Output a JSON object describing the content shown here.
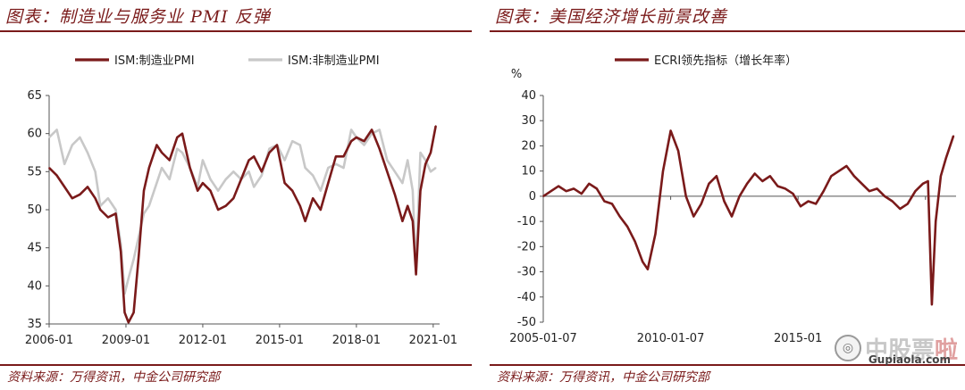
{
  "left_panel": {
    "title": "图表：制造业与服务业 PMI 反弹",
    "source": "资料来源：万得资讯，中金公司研究部"
  },
  "right_panel": {
    "title": "图表：美国经济增长前景改善",
    "source": "资料来源：万得资讯，中金公司研究部"
  },
  "watermark": {
    "text_a": "中",
    "text_b": "股票",
    "text_c": "啦",
    "url": "Gupiaola.com"
  },
  "chart_data": [
    {
      "type": "line",
      "title": "",
      "x_tick_labels": [
        "2006-01",
        "2009-01",
        "2012-01",
        "2015-01",
        "2018-01",
        "2021-01"
      ],
      "y_ticks": [
        35,
        40,
        45,
        50,
        55,
        60,
        65
      ],
      "xlim": [
        2006.0,
        2021.25
      ],
      "ylim": [
        35,
        65
      ],
      "legend_placement": "top",
      "series": [
        {
          "name": "ISM:制造业PMI",
          "color": "#7a1a1a",
          "x": [
            2006.0,
            2006.3,
            2006.6,
            2006.9,
            2007.2,
            2007.5,
            2007.8,
            2008.0,
            2008.3,
            2008.6,
            2008.8,
            2008.95,
            2009.1,
            2009.3,
            2009.5,
            2009.7,
            2009.9,
            2010.2,
            2010.4,
            2010.7,
            2011.0,
            2011.2,
            2011.5,
            2011.8,
            2012.0,
            2012.3,
            2012.6,
            2012.9,
            2013.2,
            2013.5,
            2013.8,
            2014.0,
            2014.3,
            2014.6,
            2014.9,
            2015.2,
            2015.5,
            2015.8,
            2016.0,
            2016.3,
            2016.6,
            2016.9,
            2017.2,
            2017.5,
            2017.8,
            2018.0,
            2018.3,
            2018.6,
            2018.9,
            2019.2,
            2019.5,
            2019.8,
            2020.0,
            2020.2,
            2020.33,
            2020.5,
            2020.7,
            2020.9,
            2021.1
          ],
          "values": [
            55.5,
            54.5,
            53.0,
            51.5,
            52.0,
            53.0,
            51.5,
            50.0,
            49.0,
            49.5,
            44.5,
            36.5,
            35.2,
            36.5,
            44.0,
            52.5,
            55.5,
            58.5,
            57.5,
            56.5,
            59.5,
            60.0,
            55.5,
            52.5,
            53.5,
            52.5,
            50.0,
            50.5,
            51.5,
            54.0,
            56.5,
            57.0,
            55.0,
            57.5,
            58.5,
            53.5,
            52.5,
            50.5,
            48.5,
            51.5,
            50.0,
            53.5,
            57.0,
            57.0,
            59.0,
            59.5,
            59.0,
            60.5,
            58.0,
            55.0,
            52.0,
            48.5,
            50.5,
            48.5,
            41.5,
            52.5,
            56.0,
            57.5,
            61.0
          ]
        },
        {
          "name": "ISM:非制造业PMI",
          "color": "#c8c8c8",
          "x": [
            2006.0,
            2006.3,
            2006.6,
            2006.9,
            2007.2,
            2007.5,
            2007.8,
            2008.0,
            2008.3,
            2008.6,
            2008.8,
            2008.95,
            2009.1,
            2009.3,
            2009.5,
            2009.7,
            2009.9,
            2010.2,
            2010.4,
            2010.7,
            2011.0,
            2011.2,
            2011.5,
            2011.8,
            2012.0,
            2012.3,
            2012.6,
            2012.9,
            2013.2,
            2013.5,
            2013.8,
            2014.0,
            2014.3,
            2014.6,
            2014.9,
            2015.2,
            2015.5,
            2015.8,
            2016.0,
            2016.3,
            2016.6,
            2016.9,
            2017.2,
            2017.5,
            2017.8,
            2018.0,
            2018.3,
            2018.6,
            2018.9,
            2019.2,
            2019.5,
            2019.8,
            2020.0,
            2020.2,
            2020.33,
            2020.5,
            2020.7,
            2020.9,
            2021.1
          ],
          "values": [
            59.5,
            60.5,
            56.0,
            58.5,
            59.5,
            57.5,
            55.0,
            50.5,
            51.5,
            50.0,
            45.5,
            39.0,
            41.0,
            43.5,
            46.5,
            49.5,
            50.5,
            53.5,
            55.5,
            54.0,
            58.0,
            57.5,
            55.5,
            53.0,
            56.5,
            54.0,
            52.5,
            54.0,
            55.0,
            54.0,
            55.0,
            53.0,
            54.5,
            58.0,
            58.5,
            56.5,
            59.0,
            58.5,
            55.5,
            54.5,
            52.5,
            55.5,
            56.0,
            55.5,
            60.5,
            59.5,
            58.5,
            60.0,
            60.5,
            56.5,
            55.0,
            53.5,
            56.5,
            52.5,
            41.8,
            57.5,
            56.5,
            55.0,
            55.5
          ]
        }
      ]
    },
    {
      "type": "line",
      "title": "",
      "ylabel": "%",
      "x_tick_labels": [
        "2005-01-07",
        "2010-01-07",
        "2015-01"
      ],
      "y_ticks": [
        -50,
        -40,
        -30,
        -20,
        -10,
        0,
        10,
        20,
        30,
        40
      ],
      "xlim": [
        2005.0,
        2021.2
      ],
      "ylim": [
        -50,
        40
      ],
      "legend_placement": "top",
      "series": [
        {
          "name": "ECRI领先指标（增长年率）",
          "color": "#7a1a1a",
          "x": [
            2005.0,
            2005.3,
            2005.6,
            2005.9,
            2006.2,
            2006.5,
            2006.8,
            2007.1,
            2007.4,
            2007.7,
            2008.0,
            2008.3,
            2008.6,
            2008.9,
            2009.1,
            2009.4,
            2009.7,
            2010.0,
            2010.3,
            2010.6,
            2010.9,
            2011.2,
            2011.5,
            2011.8,
            2012.1,
            2012.4,
            2012.7,
            2013.0,
            2013.3,
            2013.6,
            2013.9,
            2014.2,
            2014.5,
            2014.8,
            2015.1,
            2015.4,
            2015.7,
            2016.0,
            2016.3,
            2016.6,
            2016.9,
            2017.2,
            2017.5,
            2017.8,
            2018.1,
            2018.4,
            2018.7,
            2019.0,
            2019.3,
            2019.6,
            2019.9,
            2020.1,
            2020.25,
            2020.4,
            2020.6,
            2020.8,
            2021.0,
            2021.1
          ],
          "values": [
            0,
            2,
            4,
            2,
            3,
            1,
            5,
            3,
            -2,
            -3,
            -8,
            -12,
            -18,
            -26,
            -29,
            -15,
            10,
            26,
            18,
            0,
            -8,
            -3,
            5,
            8,
            -2,
            -8,
            0,
            5,
            9,
            6,
            8,
            4,
            3,
            1,
            -4,
            -2,
            -3,
            2,
            8,
            10,
            12,
            8,
            5,
            2,
            3,
            0,
            -2,
            -5,
            -3,
            2,
            5,
            6,
            -43,
            -10,
            8,
            15,
            21,
            24
          ]
        }
      ]
    }
  ]
}
